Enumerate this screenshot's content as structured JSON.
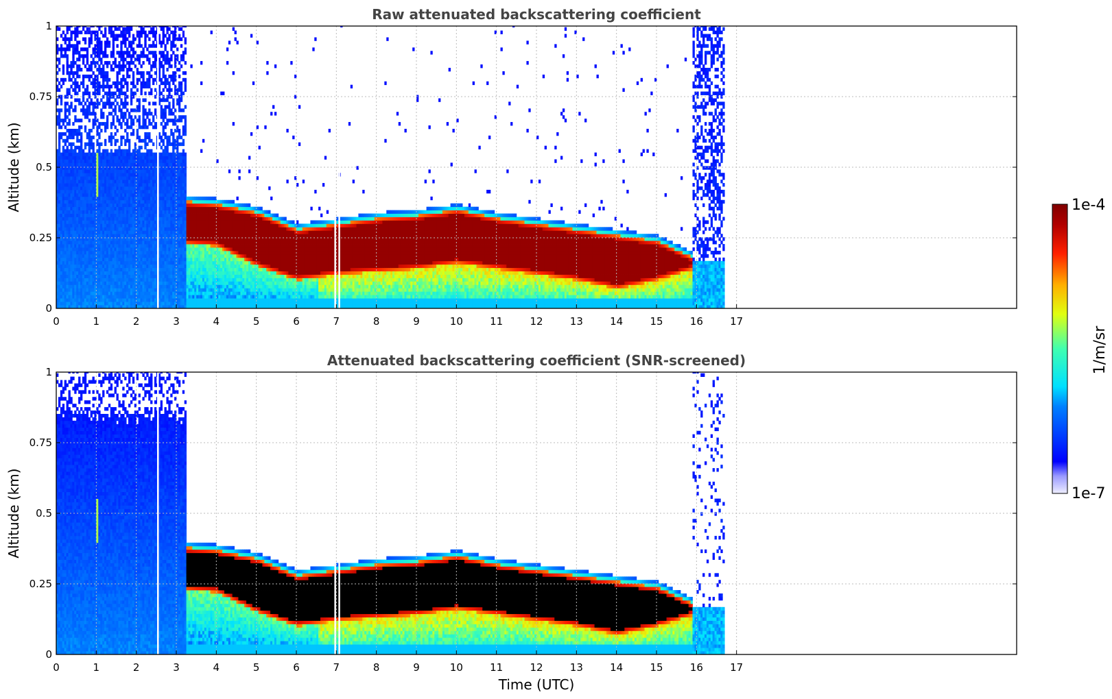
{
  "chart_data": [
    {
      "type": "heatmap",
      "title": "Raw attenuated backscattering coefficient",
      "xlabel": "",
      "ylabel": "Altitude (km)",
      "xlim": [
        0,
        24
      ],
      "ylim": [
        0,
        1
      ],
      "xticks": [
        "0",
        "1",
        "2",
        "3",
        "4",
        "5",
        "6",
        "7",
        "8",
        "9",
        "10",
        "11",
        "12",
        "13",
        "14",
        "15",
        "16",
        "17"
      ],
      "yticks": [
        {
          "value": 0,
          "label": "0"
        },
        {
          "value": 0.25,
          "label": "0.25"
        },
        {
          "value": 0.5,
          "label": "0.5"
        },
        {
          "value": 0.75,
          "label": "0.75"
        },
        {
          "value": 1,
          "label": "1"
        }
      ],
      "grid": true,
      "screened": false,
      "layer_top_km": [
        {
          "t": 3.2,
          "top": 0.38,
          "base": 0.23
        },
        {
          "t": 4.0,
          "top": 0.37,
          "base": 0.22
        },
        {
          "t": 5.0,
          "top": 0.34,
          "base": 0.15
        },
        {
          "t": 6.0,
          "top": 0.28,
          "base": 0.1
        },
        {
          "t": 7.0,
          "top": 0.3,
          "base": 0.12
        },
        {
          "t": 8.0,
          "top": 0.32,
          "base": 0.13
        },
        {
          "t": 9.0,
          "top": 0.33,
          "base": 0.14
        },
        {
          "t": 10.0,
          "top": 0.35,
          "base": 0.16
        },
        {
          "t": 11.0,
          "top": 0.32,
          "base": 0.14
        },
        {
          "t": 12.0,
          "top": 0.3,
          "base": 0.12
        },
        {
          "t": 13.0,
          "top": 0.28,
          "base": 0.1
        },
        {
          "t": 14.0,
          "top": 0.26,
          "base": 0.07
        },
        {
          "t": 15.0,
          "top": 0.24,
          "base": 0.1
        },
        {
          "t": 15.9,
          "top": 0.18,
          "base": 0.14
        }
      ]
    },
    {
      "type": "heatmap",
      "title": "Attenuated backscattering coefficient (SNR-screened)",
      "xlabel": "Time (UTC)",
      "ylabel": "Altitude (km)",
      "xlim": [
        0,
        24
      ],
      "ylim": [
        0,
        1
      ],
      "xticks": [
        "0",
        "1",
        "2",
        "3",
        "4",
        "5",
        "6",
        "7",
        "8",
        "9",
        "10",
        "11",
        "12",
        "13",
        "14",
        "15",
        "16",
        "17"
      ],
      "yticks": [
        {
          "value": 0,
          "label": "0"
        },
        {
          "value": 0.25,
          "label": "0.25"
        },
        {
          "value": 0.5,
          "label": "0.5"
        },
        {
          "value": 0.75,
          "label": "0.75"
        },
        {
          "value": 1,
          "label": "1"
        }
      ],
      "grid": true,
      "screened": true
    }
  ],
  "colorbar": {
    "label": "1/m/sr",
    "min_label": "1e-7",
    "max_label": "1e-4",
    "min": 1e-07,
    "max": 0.0001,
    "scale": "log",
    "colormap": "jet",
    "masked_color": "#000000"
  }
}
